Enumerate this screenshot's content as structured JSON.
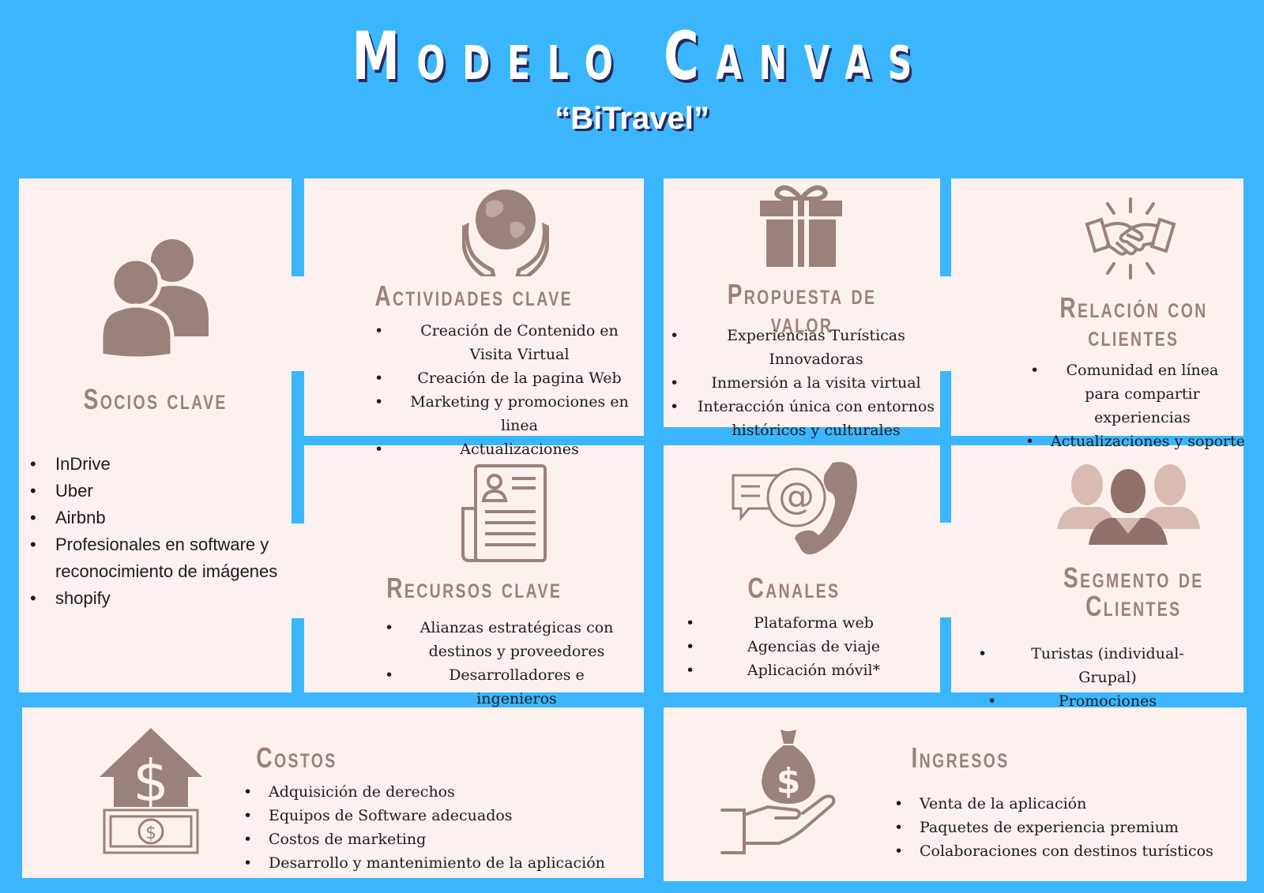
{
  "title": "Modelo Canvas",
  "subtitle": "“BiTravel”",
  "colors": {
    "background": "#3bb6fd",
    "panel": "#fcf1ee",
    "accent": "#9b817b"
  },
  "socios": {
    "heading": "Socios clave",
    "icon": "people-icon",
    "items": [
      "InDrive",
      "Uber",
      "Airbnb",
      "Profesionales en software y reconocimiento de imágenes",
      "shopify"
    ]
  },
  "actividades": {
    "heading": "Actividades clave",
    "icon": "globe-hands-icon",
    "items": [
      "Creación de Contenido en Visita Virtual",
      "Creación de la pagina Web",
      "Marketing y  promociones en linea",
      "Actualizaciones"
    ]
  },
  "propuesta": {
    "heading": "Propuesta de valor",
    "icon": "gift-icon",
    "items": [
      "Experiencias Turísticas Innovadoras",
      "Inmersión a la visita virtual",
      "Interacción única con entornos históricos y culturales"
    ]
  },
  "relacion": {
    "heading_line1": "Relación con",
    "heading_line2": "clientes",
    "icon": "handshake-icon",
    "items": [
      "Comunidad en línea para compartir experiencias",
      "Actualizaciones y soporte"
    ]
  },
  "recursos": {
    "heading": "Recursos clave",
    "icon": "document-icon",
    "items": [
      "Alianzas estratégicas con destinos y proveedores",
      "Desarrolladores e ingenieros"
    ]
  },
  "canales": {
    "heading": "Canales",
    "icon": "contact-channels-icon",
    "items": [
      "Plataforma web",
      "Agencias de viaje",
      "Aplicación móvil*"
    ]
  },
  "segmento": {
    "heading_line1": "Segmento de",
    "heading_line2": "Clientes",
    "icon": "customer-group-icon",
    "items": [
      "Turistas (individual-Grupal)",
      "Promociones"
    ]
  },
  "costos": {
    "heading": "Costos",
    "icon": "money-house-icon",
    "items": [
      "Adquisición de derechos",
      "Equipos de Software adecuados",
      "Costos de marketing",
      "Desarrollo y mantenimiento de la aplicación"
    ]
  },
  "ingresos": {
    "heading": "Ingresos",
    "icon": "money-bag-hand-icon",
    "items": [
      "Venta de la aplicación",
      "Paquetes de experiencia premium",
      "Colaboraciones con destinos turísticos"
    ]
  }
}
